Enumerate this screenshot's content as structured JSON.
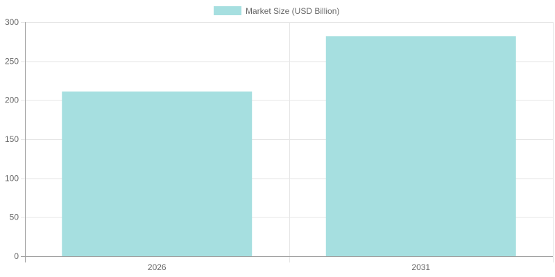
{
  "chart_data": {
    "type": "bar",
    "categories": [
      "2026",
      "2031"
    ],
    "series": [
      {
        "name": "Market Size (USD Billion)",
        "values": [
          211,
          282
        ],
        "color": "#a6dfe0"
      }
    ],
    "ylim": [
      0,
      300
    ],
    "yticks": [
      "0",
      "50",
      "100",
      "150",
      "200",
      "250",
      "300"
    ],
    "grid": true,
    "legend": "top-center",
    "colors": {
      "grid": "#e6e6e6",
      "axis": "#a0a0a0",
      "tick_text": "#666666"
    }
  }
}
